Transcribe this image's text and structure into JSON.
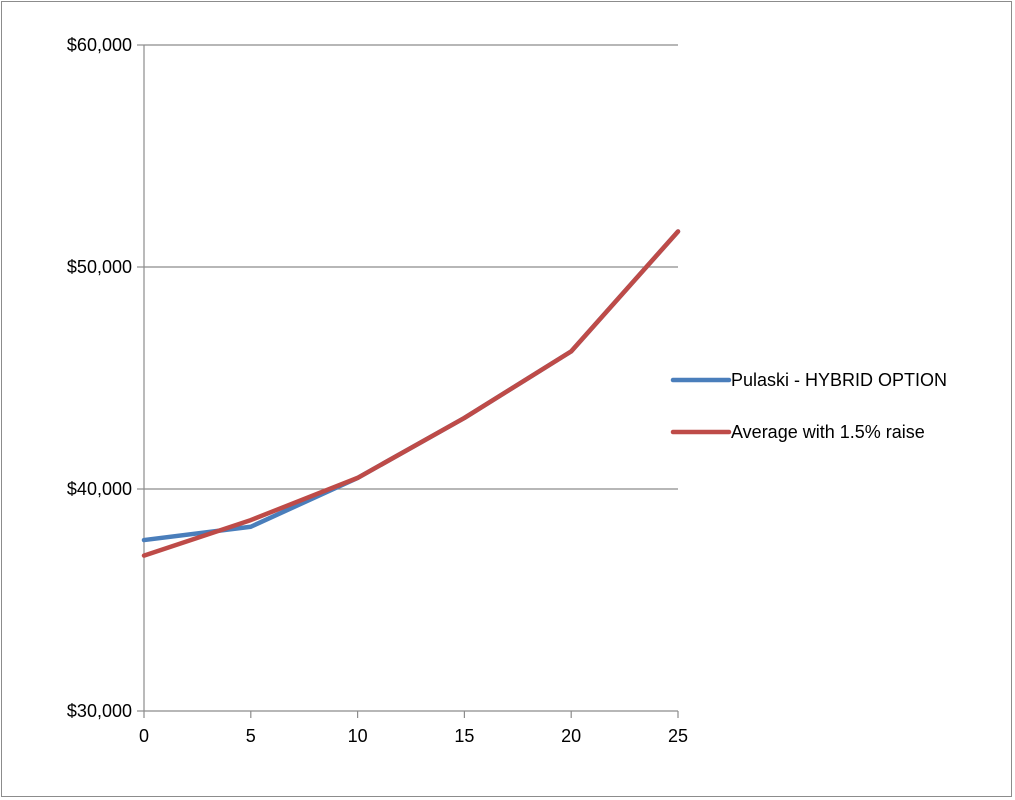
{
  "chart_data": {
    "type": "line",
    "title": "",
    "xlabel": "",
    "ylabel": "",
    "x": [
      0,
      5,
      10,
      15,
      20,
      25
    ],
    "xlim": [
      0,
      25
    ],
    "ylim": [
      30000,
      60000
    ],
    "x_ticks": [
      0,
      5,
      10,
      15,
      20,
      25
    ],
    "y_ticks": [
      30000,
      40000,
      50000,
      60000
    ],
    "x_tick_labels": [
      "0",
      "5",
      "10",
      "15",
      "20",
      "25"
    ],
    "y_tick_labels": [
      "$30,000",
      "$40,000",
      "$50,000",
      "$60,000"
    ],
    "grid": "horizontal major gridlines",
    "legend_position": "right",
    "series": [
      {
        "name": "Pulaski - HYBRID OPTION",
        "color": "#4a7ebb",
        "values": [
          37700,
          38300,
          40500,
          43200,
          46200,
          51600
        ]
      },
      {
        "name": "Average with 1.5% raise",
        "color": "#be4b48",
        "values": [
          37000,
          38600,
          40500,
          43200,
          46200,
          51600
        ]
      }
    ]
  }
}
